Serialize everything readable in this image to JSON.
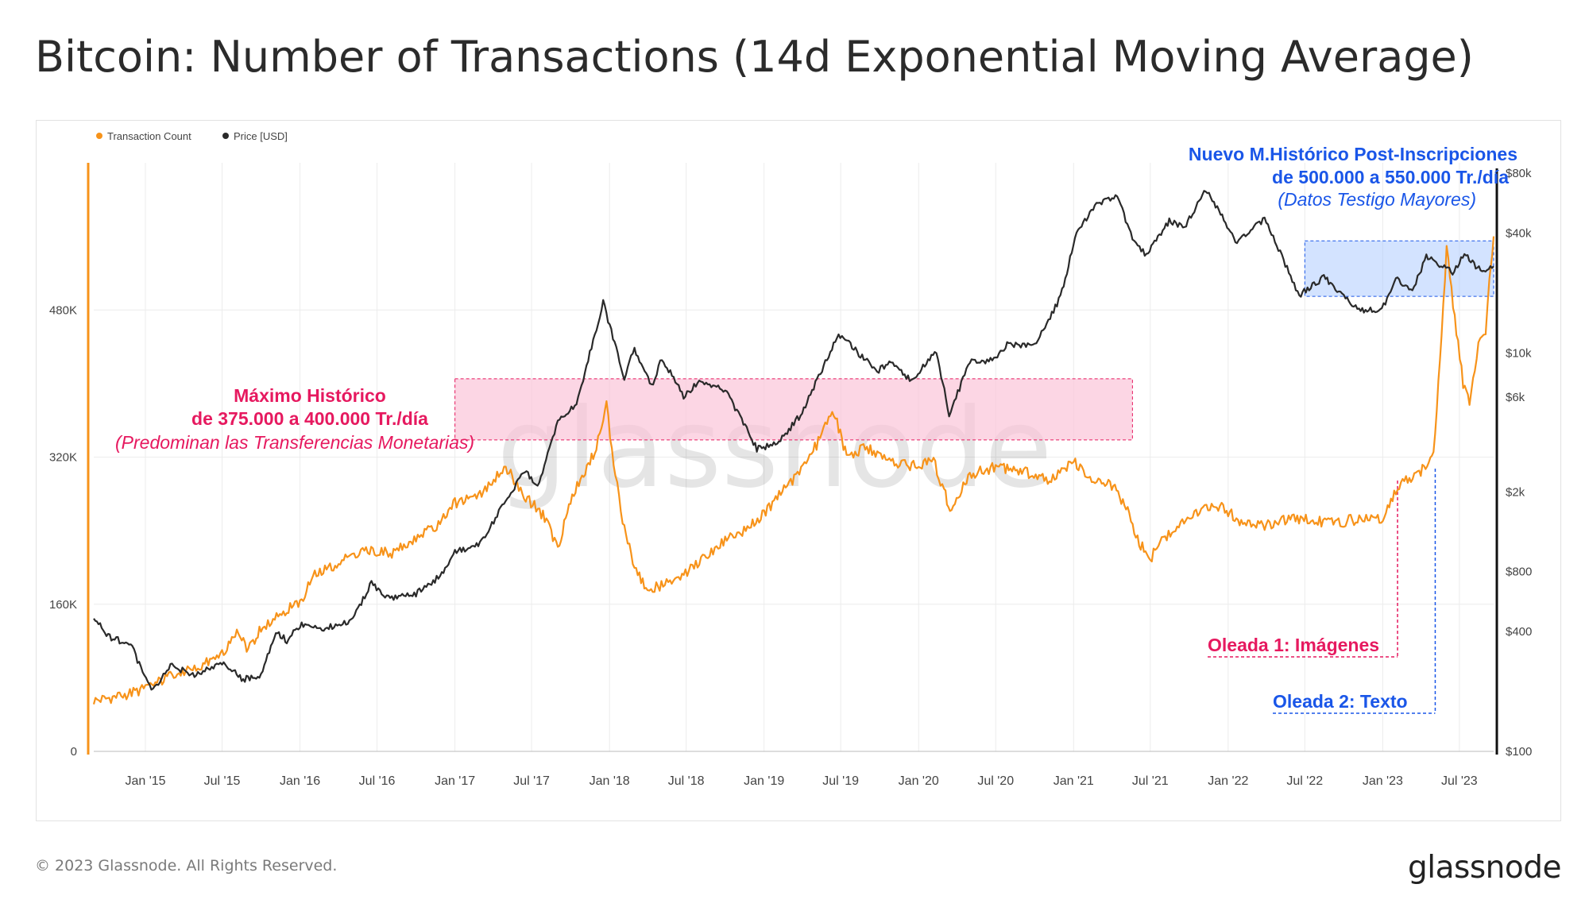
{
  "title": "Bitcoin: Number of Transactions (14d Exponential Moving Average)",
  "footer": "© 2023 Glassnode. All Rights Reserved.",
  "logo": "glassnode",
  "watermark": "glassnode",
  "colors": {
    "transactions": "#f7931a",
    "price": "#2a2a2a",
    "pink": "#e6195f",
    "blue": "#1a56e8"
  },
  "chart_data": {
    "type": "line",
    "legend_position": "top-left",
    "grid": true,
    "x_ticks": [
      "Jan '15",
      "Jul '15",
      "Jan '16",
      "Jul '16",
      "Jan '17",
      "Jul '17",
      "Jan '18",
      "Jul '18",
      "Jan '19",
      "Jul '19",
      "Jan '20",
      "Jul '20",
      "Jan '21",
      "Jul '21",
      "Jan '22",
      "Jul '22",
      "Jan '23",
      "Jul '23"
    ],
    "x_range": [
      "2014-09-01",
      "2023-09-20"
    ],
    "left_axis": {
      "ticks": [
        "0",
        "160K",
        "320K",
        "480K"
      ],
      "range": [
        0,
        640000
      ]
    },
    "right_axis": {
      "scale": "log",
      "ticks": [
        "$100",
        "$400",
        "$800",
        "$2k",
        "$6k",
        "$10k",
        "$40k",
        "$80k"
      ],
      "range": [
        100,
        90000
      ]
    },
    "series": [
      {
        "name": "Transaction Count",
        "axis": "left",
        "points": [
          [
            "2014-09-01",
            55000
          ],
          [
            "2014-11-01",
            60000
          ],
          [
            "2015-01-01",
            68000
          ],
          [
            "2015-03-01",
            82000
          ],
          [
            "2015-05-01",
            90000
          ],
          [
            "2015-07-01",
            105000
          ],
          [
            "2015-08-01",
            130000
          ],
          [
            "2015-09-01",
            110000
          ],
          [
            "2015-10-01",
            135000
          ],
          [
            "2015-12-01",
            155000
          ],
          [
            "2016-01-01",
            160000
          ],
          [
            "2016-02-01",
            190000
          ],
          [
            "2016-04-01",
            205000
          ],
          [
            "2016-06-01",
            220000
          ],
          [
            "2016-08-01",
            215000
          ],
          [
            "2016-10-01",
            230000
          ],
          [
            "2016-12-01",
            250000
          ],
          [
            "2017-01-01",
            270000
          ],
          [
            "2017-03-01",
            280000
          ],
          [
            "2017-05-01",
            310000
          ],
          [
            "2017-06-01",
            285000
          ],
          [
            "2017-08-01",
            255000
          ],
          [
            "2017-09-01",
            220000
          ],
          [
            "2017-10-01",
            275000
          ],
          [
            "2017-11-01",
            300000
          ],
          [
            "2017-12-01",
            330000
          ],
          [
            "2017-12-25",
            375000
          ],
          [
            "2018-01-15",
            300000
          ],
          [
            "2018-02-01",
            250000
          ],
          [
            "2018-03-01",
            200000
          ],
          [
            "2018-04-01",
            175000
          ],
          [
            "2018-06-01",
            185000
          ],
          [
            "2018-08-01",
            205000
          ],
          [
            "2018-10-01",
            230000
          ],
          [
            "2018-12-01",
            245000
          ],
          [
            "2019-01-01",
            260000
          ],
          [
            "2019-03-01",
            290000
          ],
          [
            "2019-05-01",
            330000
          ],
          [
            "2019-06-15",
            370000
          ],
          [
            "2019-07-15",
            320000
          ],
          [
            "2019-09-01",
            330000
          ],
          [
            "2019-11-01",
            315000
          ],
          [
            "2020-01-01",
            310000
          ],
          [
            "2020-02-01",
            320000
          ],
          [
            "2020-03-01",
            285000
          ],
          [
            "2020-03-15",
            260000
          ],
          [
            "2020-05-01",
            300000
          ],
          [
            "2020-07-01",
            310000
          ],
          [
            "2020-09-01",
            305000
          ],
          [
            "2020-11-01",
            295000
          ],
          [
            "2021-01-01",
            315000
          ],
          [
            "2021-02-01",
            300000
          ],
          [
            "2021-04-01",
            290000
          ],
          [
            "2021-05-01",
            270000
          ],
          [
            "2021-06-01",
            230000
          ],
          [
            "2021-07-01",
            210000
          ],
          [
            "2021-08-01",
            230000
          ],
          [
            "2021-10-01",
            255000
          ],
          [
            "2021-12-01",
            270000
          ],
          [
            "2022-02-01",
            250000
          ],
          [
            "2022-04-01",
            245000
          ],
          [
            "2022-06-01",
            255000
          ],
          [
            "2022-08-01",
            250000
          ],
          [
            "2022-10-01",
            250000
          ],
          [
            "2022-12-01",
            255000
          ],
          [
            "2023-01-01",
            250000
          ],
          [
            "2023-02-01",
            285000
          ],
          [
            "2023-03-01",
            295000
          ],
          [
            "2023-04-01",
            305000
          ],
          [
            "2023-05-01",
            320000
          ],
          [
            "2023-05-20",
            450000
          ],
          [
            "2023-06-01",
            550000
          ],
          [
            "2023-06-20",
            470000
          ],
          [
            "2023-07-10",
            400000
          ],
          [
            "2023-07-25",
            380000
          ],
          [
            "2023-08-15",
            440000
          ],
          [
            "2023-09-01",
            455000
          ],
          [
            "2023-09-10",
            510000
          ],
          [
            "2023-09-20",
            560000
          ]
        ]
      },
      {
        "name": "Price [USD]",
        "axis": "right",
        "points": [
          [
            "2014-09-01",
            480
          ],
          [
            "2014-10-01",
            380
          ],
          [
            "2014-11-01",
            360
          ],
          [
            "2014-12-01",
            330
          ],
          [
            "2015-01-15",
            200
          ],
          [
            "2015-03-01",
            270
          ],
          [
            "2015-05-01",
            240
          ],
          [
            "2015-07-01",
            280
          ],
          [
            "2015-08-20",
            230
          ],
          [
            "2015-10-01",
            240
          ],
          [
            "2015-11-05",
            400
          ],
          [
            "2015-12-01",
            360
          ],
          [
            "2016-01-01",
            430
          ],
          [
            "2016-03-01",
            415
          ],
          [
            "2016-05-01",
            450
          ],
          [
            "2016-06-18",
            700
          ],
          [
            "2016-08-01",
            580
          ],
          [
            "2016-10-01",
            620
          ],
          [
            "2016-12-01",
            770
          ],
          [
            "2017-01-01",
            1000
          ],
          [
            "2017-03-01",
            1100
          ],
          [
            "2017-05-01",
            1800
          ],
          [
            "2017-06-15",
            2600
          ],
          [
            "2017-07-15",
            2100
          ],
          [
            "2017-09-01",
            4500
          ],
          [
            "2017-10-15",
            5500
          ],
          [
            "2017-12-17",
            18000
          ],
          [
            "2018-02-05",
            7500
          ],
          [
            "2018-03-01",
            10500
          ],
          [
            "2018-04-10",
            6800
          ],
          [
            "2018-05-05",
            9500
          ],
          [
            "2018-06-25",
            6000
          ],
          [
            "2018-08-01",
            7300
          ],
          [
            "2018-10-01",
            6500
          ],
          [
            "2018-11-25",
            4000
          ],
          [
            "2018-12-15",
            3300
          ],
          [
            "2019-02-01",
            3500
          ],
          [
            "2019-04-01",
            5000
          ],
          [
            "2019-06-26",
            12500
          ],
          [
            "2019-08-01",
            10500
          ],
          [
            "2019-09-25",
            8100
          ],
          [
            "2019-11-01",
            9000
          ],
          [
            "2019-12-15",
            7200
          ],
          [
            "2020-02-12",
            10200
          ],
          [
            "2020-03-13",
            4900
          ],
          [
            "2020-05-01",
            9000
          ],
          [
            "2020-07-01",
            9200
          ],
          [
            "2020-07-28",
            11000
          ],
          [
            "2020-10-01",
            10800
          ],
          [
            "2020-12-01",
            19000
          ],
          [
            "2021-01-08",
            40000
          ],
          [
            "2021-02-20",
            55000
          ],
          [
            "2021-04-14",
            61000
          ],
          [
            "2021-05-20",
            38000
          ],
          [
            "2021-06-22",
            31000
          ],
          [
            "2021-08-15",
            46000
          ],
          [
            "2021-09-20",
            43000
          ],
          [
            "2021-11-09",
            66000
          ],
          [
            "2022-01-22",
            36000
          ],
          [
            "2022-03-28",
            47000
          ],
          [
            "2022-05-12",
            29000
          ],
          [
            "2022-06-18",
            19500
          ],
          [
            "2022-08-15",
            24000
          ],
          [
            "2022-10-01",
            19300
          ],
          [
            "2022-11-10",
            16300
          ],
          [
            "2022-12-30",
            16500
          ],
          [
            "2023-02-01",
            23500
          ],
          [
            "2023-03-12",
            20500
          ],
          [
            "2023-04-14",
            30300
          ],
          [
            "2023-06-15",
            25500
          ],
          [
            "2023-07-13",
            31000
          ],
          [
            "2023-08-20",
            26000
          ],
          [
            "2023-09-20",
            27200
          ]
        ]
      }
    ]
  },
  "annotations": {
    "ath_old": {
      "line1": "Máximo Histórico",
      "line2": "de 375.000 a 400.000 Tr./día",
      "line3": "(Predominan las Transferencias Monetarias)",
      "from": "2017-01-01",
      "to": "2021-05-20",
      "range": [
        375000,
        400000
      ]
    },
    "ath_new": {
      "line1": "Nuevo M.Histórico Post-Inscripciones",
      "line2": "de 500.000 a 550.000 Tr./día",
      "line3": "(Datos Testigo Mayores)",
      "from": "2022-07-01",
      "to": "2023-09-20",
      "range": [
        500000,
        550000
      ]
    },
    "wave1": {
      "label": "Oleada 1: Imágenes",
      "date": "2023-02-05"
    },
    "wave2": {
      "label": "Oleada 2: Texto",
      "date": "2023-05-05"
    }
  }
}
